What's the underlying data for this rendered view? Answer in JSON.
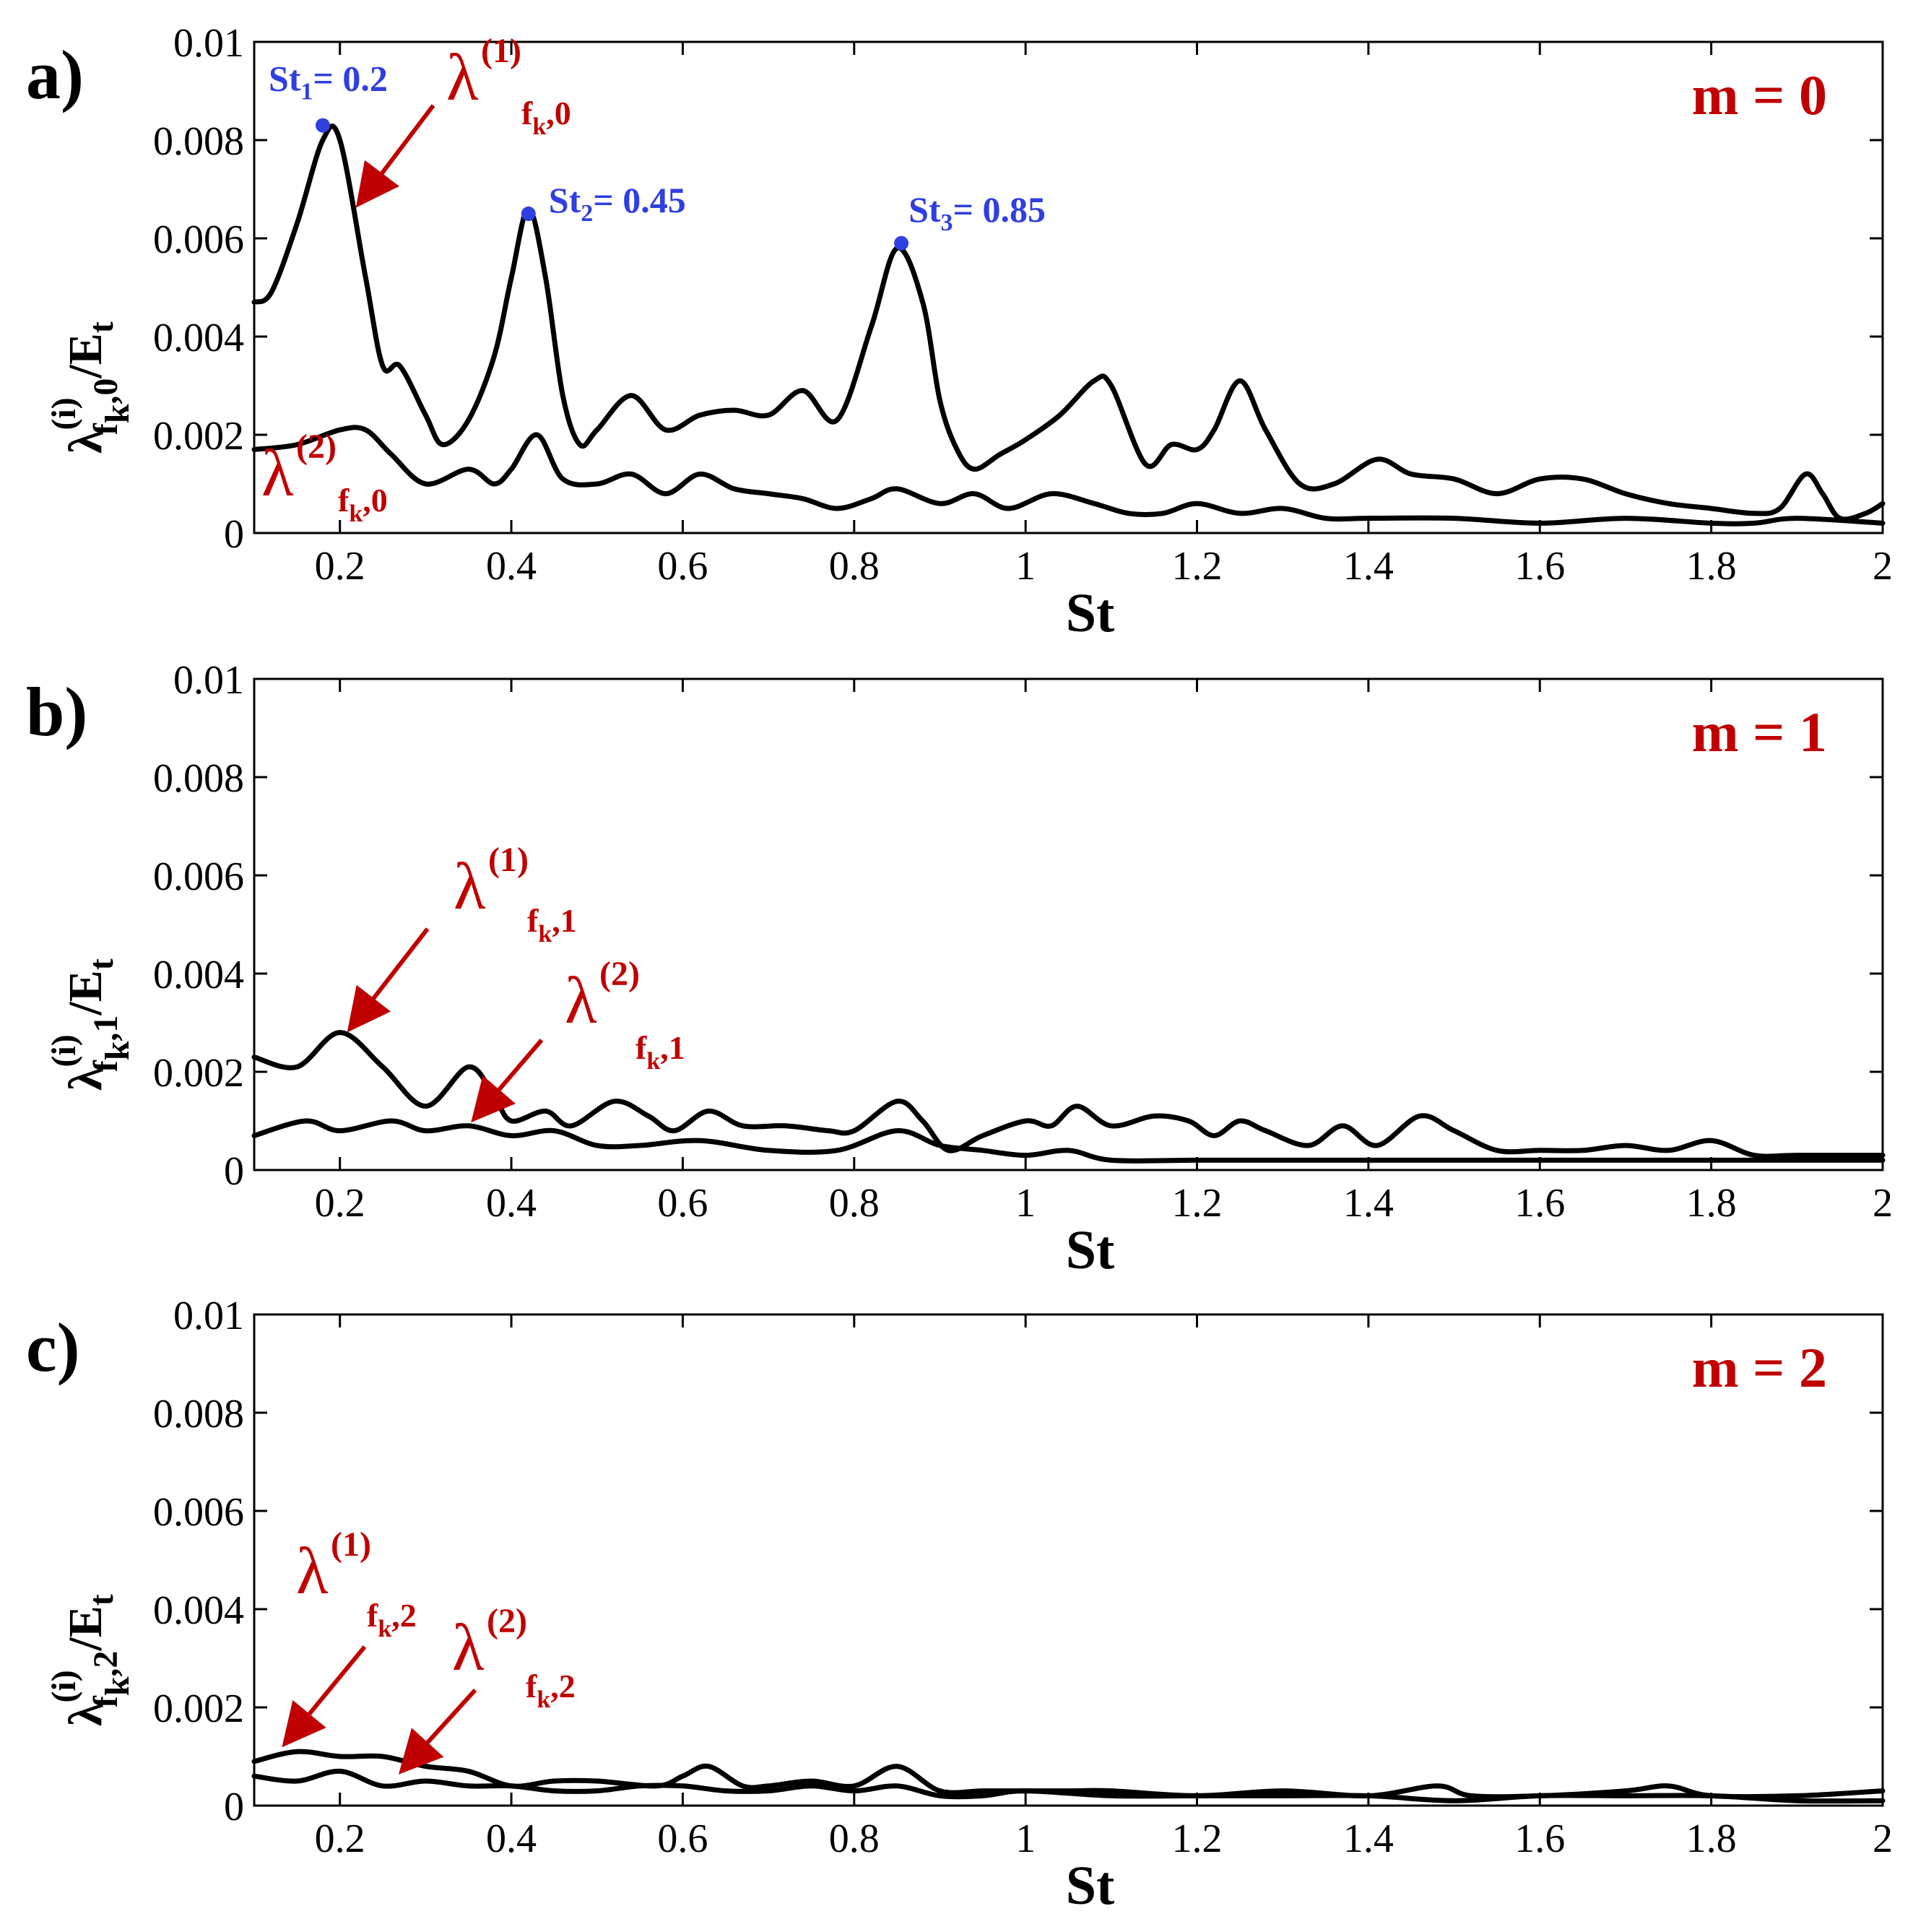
{
  "chart_data": [
    {
      "type": "line",
      "panel_label": "a)",
      "mode_label": "m = 0",
      "xlabel": "St",
      "ylabel": {
        "main": "λ",
        "sup": "(i)",
        "sub": "f",
        "subsub": "k",
        "tail": ",0",
        "norm": "/E",
        "normsub": "t"
      },
      "xlim": [
        0.1,
        2
      ],
      "ylim": [
        0,
        0.01
      ],
      "xticks": [
        "0.2",
        "0.4",
        "0.6",
        "0.8",
        "1",
        "1.2",
        "1.4",
        "1.6",
        "1.8",
        "2"
      ],
      "yticks": [
        "0",
        "0.002",
        "0.004",
        "0.006",
        "0.008",
        "0.01"
      ],
      "series": [
        {
          "name": "λ(1) fk,0",
          "x": [
            0.1,
            0.12,
            0.15,
            0.18,
            0.2,
            0.23,
            0.25,
            0.27,
            0.3,
            0.32,
            0.35,
            0.38,
            0.4,
            0.42,
            0.44,
            0.46,
            0.48,
            0.5,
            0.54,
            0.58,
            0.62,
            0.66,
            0.7,
            0.74,
            0.78,
            0.82,
            0.85,
            0.88,
            0.9,
            0.92,
            0.94,
            0.97,
            1.0,
            1.04,
            1.08,
            1.1,
            1.14,
            1.17,
            1.2,
            1.22,
            1.25,
            1.28,
            1.32,
            1.36,
            1.41,
            1.45,
            1.5,
            1.55,
            1.6,
            1.65,
            1.7,
            1.75,
            1.8,
            1.85,
            1.88,
            1.91,
            1.93,
            1.95,
            1.98,
            2.0
          ],
          "values": [
            0.0047,
            0.0049,
            0.0063,
            0.008,
            0.008,
            0.0052,
            0.0034,
            0.0034,
            0.0024,
            0.0018,
            0.0023,
            0.0036,
            0.0052,
            0.0066,
            0.0052,
            0.0028,
            0.0018,
            0.0021,
            0.0028,
            0.0021,
            0.0024,
            0.0025,
            0.0024,
            0.0029,
            0.0023,
            0.0042,
            0.0058,
            0.0047,
            0.0027,
            0.0017,
            0.0013,
            0.0016,
            0.0019,
            0.0024,
            0.0031,
            0.003,
            0.0014,
            0.0018,
            0.0017,
            0.0021,
            0.0031,
            0.0021,
            0.001,
            0.001,
            0.0015,
            0.0012,
            0.0011,
            0.0008,
            0.0011,
            0.0011,
            0.0008,
            0.0006,
            0.0005,
            0.0004,
            0.0005,
            0.0012,
            0.0008,
            0.0003,
            0.0004,
            0.0006
          ]
        },
        {
          "name": "λ(2) fk,0",
          "x": [
            0.1,
            0.15,
            0.2,
            0.23,
            0.26,
            0.3,
            0.35,
            0.38,
            0.4,
            0.43,
            0.46,
            0.5,
            0.54,
            0.58,
            0.62,
            0.66,
            0.7,
            0.74,
            0.78,
            0.82,
            0.85,
            0.9,
            0.94,
            0.98,
            1.03,
            1.08,
            1.12,
            1.16,
            1.2,
            1.25,
            1.3,
            1.35,
            1.4,
            1.5,
            1.6,
            1.7,
            1.8,
            1.85,
            1.9,
            2.0
          ],
          "values": [
            0.0017,
            0.0018,
            0.0021,
            0.0021,
            0.0016,
            0.001,
            0.0013,
            0.001,
            0.0013,
            0.002,
            0.0011,
            0.001,
            0.0012,
            0.0008,
            0.0012,
            0.0009,
            0.0008,
            0.0007,
            0.0005,
            0.0007,
            0.0009,
            0.0006,
            0.0008,
            0.0005,
            0.0008,
            0.0006,
            0.0004,
            0.0004,
            0.0006,
            0.0004,
            0.0005,
            0.0003,
            0.0003,
            0.0003,
            0.0002,
            0.0003,
            0.0002,
            0.0002,
            0.0003,
            0.0002
          ]
        }
      ],
      "annotations": [
        {
          "text": "St",
          "sub": "1",
          "tail": "= 0.2",
          "x": 0.18,
          "y": 0.0083
        },
        {
          "text": "St",
          "sub": "2",
          "tail": "= 0.45",
          "x": 0.42,
          "y": 0.0065
        },
        {
          "text": "St",
          "sub": "3",
          "tail": "= 0.85",
          "x": 0.855,
          "y": 0.0059
        }
      ],
      "curve_labels": [
        {
          "lam": "λ",
          "sup": "(1)",
          "sub": "f",
          "subsub": "k",
          "tail": ",0"
        },
        {
          "lam": "λ",
          "sup": "(2)",
          "sub": "f",
          "subsub": "k",
          "tail": ",0"
        }
      ]
    },
    {
      "type": "line",
      "panel_label": "b)",
      "mode_label": "m = 1",
      "xlabel": "St",
      "ylabel": {
        "main": "λ",
        "sup": "(i)",
        "sub": "f",
        "subsub": "k",
        "tail": ",1",
        "norm": "/E",
        "normsub": "t"
      },
      "xlim": [
        0.1,
        2
      ],
      "ylim": [
        0,
        0.01
      ],
      "xticks": [
        "0.2",
        "0.4",
        "0.6",
        "0.8",
        "1",
        "1.2",
        "1.4",
        "1.6",
        "1.8",
        "2"
      ],
      "yticks": [
        "0",
        "0.002",
        "0.004",
        "0.006",
        "0.008",
        "0.01"
      ],
      "series": [
        {
          "name": "λ(1) fk,1",
          "x": [
            0.1,
            0.15,
            0.2,
            0.25,
            0.3,
            0.35,
            0.38,
            0.4,
            0.44,
            0.47,
            0.52,
            0.56,
            0.59,
            0.63,
            0.67,
            0.72,
            0.77,
            0.8,
            0.85,
            0.88,
            0.91,
            0.95,
            1.0,
            1.03,
            1.06,
            1.1,
            1.15,
            1.19,
            1.22,
            1.25,
            1.28,
            1.33,
            1.37,
            1.41,
            1.46,
            1.5,
            1.55,
            1.6,
            1.65,
            1.7,
            1.75,
            1.8,
            1.85,
            1.9,
            2.0
          ],
          "values": [
            0.0023,
            0.0021,
            0.0028,
            0.0021,
            0.0013,
            0.0021,
            0.0015,
            0.001,
            0.0012,
            0.0009,
            0.0014,
            0.0011,
            0.0008,
            0.0012,
            0.0009,
            0.0009,
            0.0008,
            0.0008,
            0.0014,
            0.001,
            0.0004,
            0.0007,
            0.001,
            0.0009,
            0.0013,
            0.0009,
            0.0011,
            0.001,
            0.0007,
            0.001,
            0.0008,
            0.0005,
            0.0009,
            0.0005,
            0.0011,
            0.0008,
            0.0004,
            0.0004,
            0.0004,
            0.0005,
            0.0004,
            0.0006,
            0.0003,
            0.0003,
            0.0003
          ]
        },
        {
          "name": "λ(2) fk,1",
          "x": [
            0.1,
            0.16,
            0.2,
            0.26,
            0.3,
            0.35,
            0.4,
            0.45,
            0.5,
            0.55,
            0.62,
            0.7,
            0.78,
            0.85,
            0.9,
            0.95,
            1.0,
            1.05,
            1.1,
            1.2,
            1.3,
            1.4,
            1.5,
            1.6,
            1.7,
            1.8,
            1.9,
            2.0
          ],
          "values": [
            0.0007,
            0.001,
            0.0008,
            0.001,
            0.0008,
            0.0009,
            0.0007,
            0.0008,
            0.0005,
            0.0005,
            0.0006,
            0.0004,
            0.0004,
            0.0008,
            0.0005,
            0.0004,
            0.0003,
            0.0004,
            0.0002,
            0.0002,
            0.0002,
            0.0002,
            0.0002,
            0.0002,
            0.0002,
            0.0002,
            0.0002,
            0.0002
          ]
        }
      ],
      "curve_labels": [
        {
          "lam": "λ",
          "sup": "(1)",
          "sub": "f",
          "subsub": "k",
          "tail": ",1"
        },
        {
          "lam": "λ",
          "sup": "(2)",
          "sub": "f",
          "subsub": "k",
          "tail": ",1"
        }
      ]
    },
    {
      "type": "line",
      "panel_label": "c)",
      "mode_label": "m = 2",
      "xlabel": "St",
      "ylabel": {
        "main": "λ",
        "sup": "(i)",
        "sub": "f",
        "subsub": "k",
        "tail": ",2",
        "norm": "/E",
        "normsub": "t"
      },
      "xlim": [
        0.1,
        2
      ],
      "ylim": [
        0,
        0.01
      ],
      "xticks": [
        "0.2",
        "0.4",
        "0.6",
        "0.8",
        "1",
        "1.2",
        "1.4",
        "1.6",
        "1.8",
        "2"
      ],
      "yticks": [
        "0",
        "0.002",
        "0.004",
        "0.006",
        "0.008",
        "0.01"
      ],
      "series": [
        {
          "name": "λ(1) fk,2",
          "x": [
            0.1,
            0.15,
            0.2,
            0.25,
            0.3,
            0.35,
            0.4,
            0.45,
            0.5,
            0.57,
            0.6,
            0.63,
            0.67,
            0.7,
            0.75,
            0.8,
            0.85,
            0.9,
            0.95,
            1.0,
            1.05,
            1.1,
            1.2,
            1.3,
            1.4,
            1.48,
            1.52,
            1.6,
            1.7,
            1.75,
            1.8,
            1.9,
            2.0
          ],
          "values": [
            0.0009,
            0.0011,
            0.001,
            0.001,
            0.0008,
            0.0007,
            0.0004,
            0.0005,
            0.0005,
            0.0004,
            0.0006,
            0.0008,
            0.0004,
            0.0004,
            0.0005,
            0.0004,
            0.0008,
            0.0003,
            0.0003,
            0.0003,
            0.0003,
            0.0003,
            0.0002,
            0.0003,
            0.0002,
            0.0004,
            0.0002,
            0.0002,
            0.0003,
            0.0004,
            0.0002,
            0.0002,
            0.0003
          ]
        },
        {
          "name": "λ(2) fk,2",
          "x": [
            0.1,
            0.15,
            0.2,
            0.25,
            0.3,
            0.35,
            0.4,
            0.45,
            0.5,
            0.55,
            0.6,
            0.65,
            0.7,
            0.75,
            0.8,
            0.85,
            0.9,
            0.95,
            1.0,
            1.1,
            1.2,
            1.3,
            1.4,
            1.5,
            1.6,
            1.7,
            1.8,
            1.9,
            2.0
          ],
          "values": [
            0.0006,
            0.0005,
            0.0007,
            0.0004,
            0.0005,
            0.0004,
            0.0004,
            0.0003,
            0.0003,
            0.0004,
            0.0004,
            0.0003,
            0.0003,
            0.0004,
            0.0003,
            0.0004,
            0.0002,
            0.0002,
            0.0003,
            0.0002,
            0.0002,
            0.0002,
            0.0002,
            0.0001,
            0.0002,
            0.0002,
            0.0002,
            0.0001,
            0.0001
          ]
        }
      ],
      "curve_labels": [
        {
          "lam": "λ",
          "sup": "(1)",
          "sub": "f",
          "subsub": "k",
          "tail": ",2"
        },
        {
          "lam": "λ",
          "sup": "(2)",
          "sub": "f",
          "subsub": "k",
          "tail": ",2"
        }
      ]
    }
  ]
}
